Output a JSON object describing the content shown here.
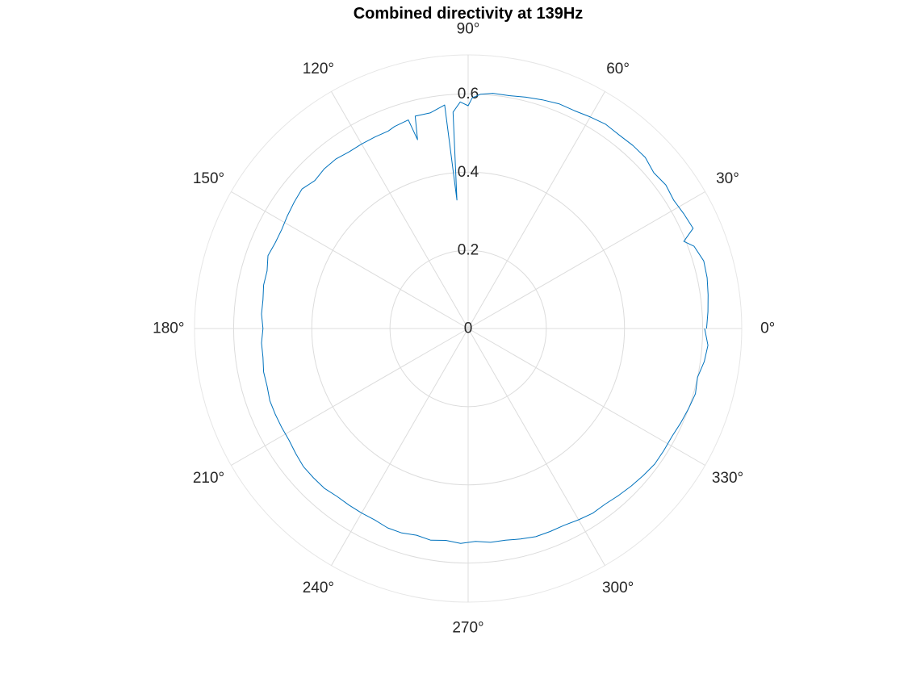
{
  "chart_data": {
    "type": "line",
    "subtype": "polar",
    "title": "Combined directivity at 139Hz",
    "theta_unit": "deg",
    "theta_ticks": [
      0,
      30,
      60,
      90,
      120,
      150,
      180,
      210,
      240,
      270,
      300,
      330
    ],
    "theta_tick_labels": [
      "0°",
      "30°",
      "60°",
      "90°",
      "120°",
      "150°",
      "180°",
      "210°",
      "240°",
      "270°",
      "300°",
      "330°"
    ],
    "r_ticks": [
      0,
      0.2,
      0.4,
      0.6
    ],
    "r_tick_labels": [
      "0",
      "0.2",
      "0.4",
      "0.6"
    ],
    "rlim": [
      0,
      0.7
    ],
    "theta_zero_location": "right",
    "theta_direction": "counterclockwise",
    "grid": true,
    "series": [
      {
        "color": "#0072bd",
        "theta": [
          0,
          4,
          8,
          12,
          16,
          20,
          22,
          24,
          28,
          32,
          36,
          40,
          44,
          48,
          52,
          56,
          60,
          64,
          68,
          72,
          76,
          80,
          84,
          87,
          89,
          90,
          92,
          94,
          95,
          96,
          100,
          104,
          105,
          106,
          110,
          112,
          116,
          120,
          124,
          128,
          132,
          136,
          140,
          144,
          148,
          152,
          156,
          160,
          164,
          168,
          172,
          176,
          180,
          184,
          188,
          192,
          196,
          200,
          204,
          208,
          212,
          216,
          220,
          224,
          228,
          232,
          236,
          240,
          244,
          248,
          252,
          256,
          260,
          264,
          268,
          272,
          276,
          280,
          284,
          288,
          292,
          296,
          300,
          304,
          308,
          312,
          316,
          320,
          324,
          328,
          332,
          336,
          340,
          344,
          348,
          352,
          356,
          360
        ],
        "r": [
          0.61,
          0.615,
          0.62,
          0.625,
          0.627,
          0.615,
          0.595,
          0.63,
          0.625,
          0.62,
          0.625,
          0.62,
          0.63,
          0.63,
          0.628,
          0.63,
          0.625,
          0.62,
          0.62,
          0.615,
          0.61,
          0.605,
          0.605,
          0.6,
          0.59,
          0.57,
          0.58,
          0.555,
          0.33,
          0.575,
          0.56,
          0.56,
          0.5,
          0.555,
          0.55,
          0.545,
          0.545,
          0.545,
          0.545,
          0.55,
          0.55,
          0.545,
          0.555,
          0.55,
          0.545,
          0.54,
          0.54,
          0.545,
          0.535,
          0.535,
          0.53,
          0.53,
          0.525,
          0.53,
          0.53,
          0.535,
          0.535,
          0.54,
          0.54,
          0.54,
          0.54,
          0.545,
          0.55,
          0.55,
          0.55,
          0.545,
          0.545,
          0.545,
          0.545,
          0.55,
          0.55,
          0.545,
          0.55,
          0.545,
          0.55,
          0.545,
          0.55,
          0.55,
          0.555,
          0.56,
          0.56,
          0.56,
          0.565,
          0.57,
          0.57,
          0.575,
          0.58,
          0.585,
          0.59,
          0.59,
          0.59,
          0.595,
          0.6,
          0.605,
          0.6,
          0.61,
          0.615,
          0.605
        ]
      }
    ]
  }
}
